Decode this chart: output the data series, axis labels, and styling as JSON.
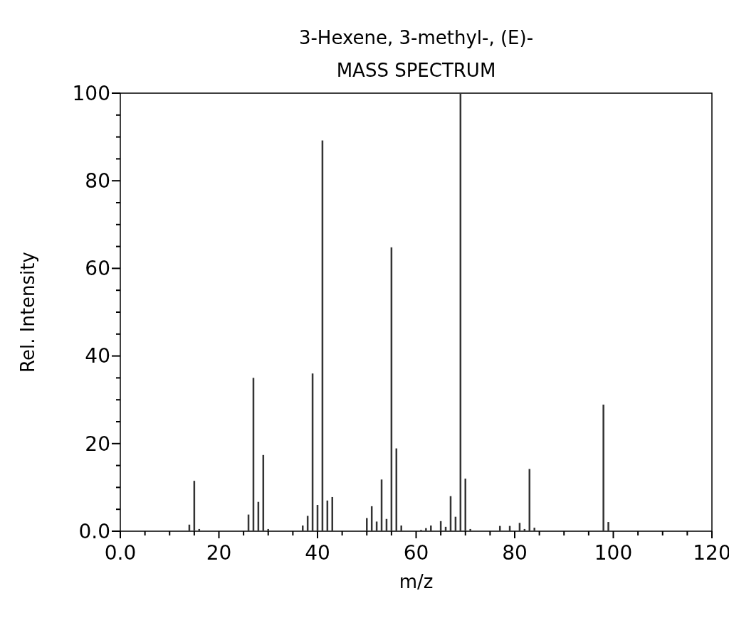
{
  "chart_data": {
    "type": "bar",
    "title": "3-Hexene, 3-methyl-, (E)-",
    "subtitle": "MASS SPECTRUM",
    "xlabel": "m/z",
    "ylabel": "Rel. Intensity",
    "x": [
      14,
      15,
      16,
      26,
      27,
      28,
      29,
      30,
      37,
      38,
      39,
      40,
      41,
      42,
      43,
      50,
      51,
      52,
      53,
      54,
      55,
      56,
      57,
      61,
      62,
      63,
      65,
      66,
      67,
      68,
      69,
      70,
      71,
      77,
      79,
      81,
      82,
      83,
      84,
      98,
      99
    ],
    "values": [
      1.5,
      11.5,
      0.5,
      3.8,
      35,
      6.7,
      17.4,
      0.5,
      1.3,
      3.5,
      36,
      6,
      89.2,
      7,
      7.8,
      3,
      5.7,
      2.2,
      11.8,
      2.8,
      64.8,
      18.9,
      1.3,
      0.3,
      0.7,
      1.3,
      2.3,
      1,
      8,
      3.3,
      100,
      12,
      0.5,
      1.2,
      1.2,
      1.9,
      0.5,
      14.2,
      0.8,
      28.9,
      2.1
    ],
    "color": "#333333",
    "xlim": [
      0,
      120
    ],
    "xticks": [
      {
        "value": 0,
        "label": "0.0"
      },
      {
        "value": 5,
        "label": null
      },
      {
        "value": 10,
        "label": null
      },
      {
        "value": 15,
        "label": null
      },
      20,
      {
        "value": 25,
        "label": null
      },
      {
        "value": 30,
        "label": null
      },
      {
        "value": 35,
        "label": null
      },
      40,
      {
        "value": 45,
        "label": null
      },
      {
        "value": 50,
        "label": null
      },
      {
        "value": 55,
        "label": null
      },
      60,
      {
        "value": 65,
        "label": null
      },
      {
        "value": 70,
        "label": null
      },
      {
        "value": 75,
        "label": null
      },
      80,
      {
        "value": 85,
        "label": null
      },
      {
        "value": 90,
        "label": null
      },
      {
        "value": 95,
        "label": null
      },
      100,
      {
        "value": 105,
        "label": null
      },
      {
        "value": 110,
        "label": null
      },
      {
        "value": 115,
        "label": null
      },
      120
    ],
    "ylim": [
      0,
      100
    ],
    "yticks": [
      {
        "value": 0,
        "label": "0.0"
      },
      {
        "value": 5,
        "label": null
      },
      {
        "value": 10,
        "label": null
      },
      {
        "value": 15,
        "label": null
      },
      20,
      {
        "value": 25,
        "label": null
      },
      {
        "value": 30,
        "label": null
      },
      {
        "value": 35,
        "label": null
      },
      40,
      {
        "value": 45,
        "label": null
      },
      {
        "value": 50,
        "label": null
      },
      {
        "value": 55,
        "label": null
      },
      60,
      {
        "value": 65,
        "label": null
      },
      {
        "value": 70,
        "label": null
      },
      {
        "value": 75,
        "label": null
      },
      80,
      {
        "value": 85,
        "label": null
      },
      {
        "value": 90,
        "label": null
      },
      {
        "value": 95,
        "label": null
      },
      100
    ],
    "grid": false
  }
}
